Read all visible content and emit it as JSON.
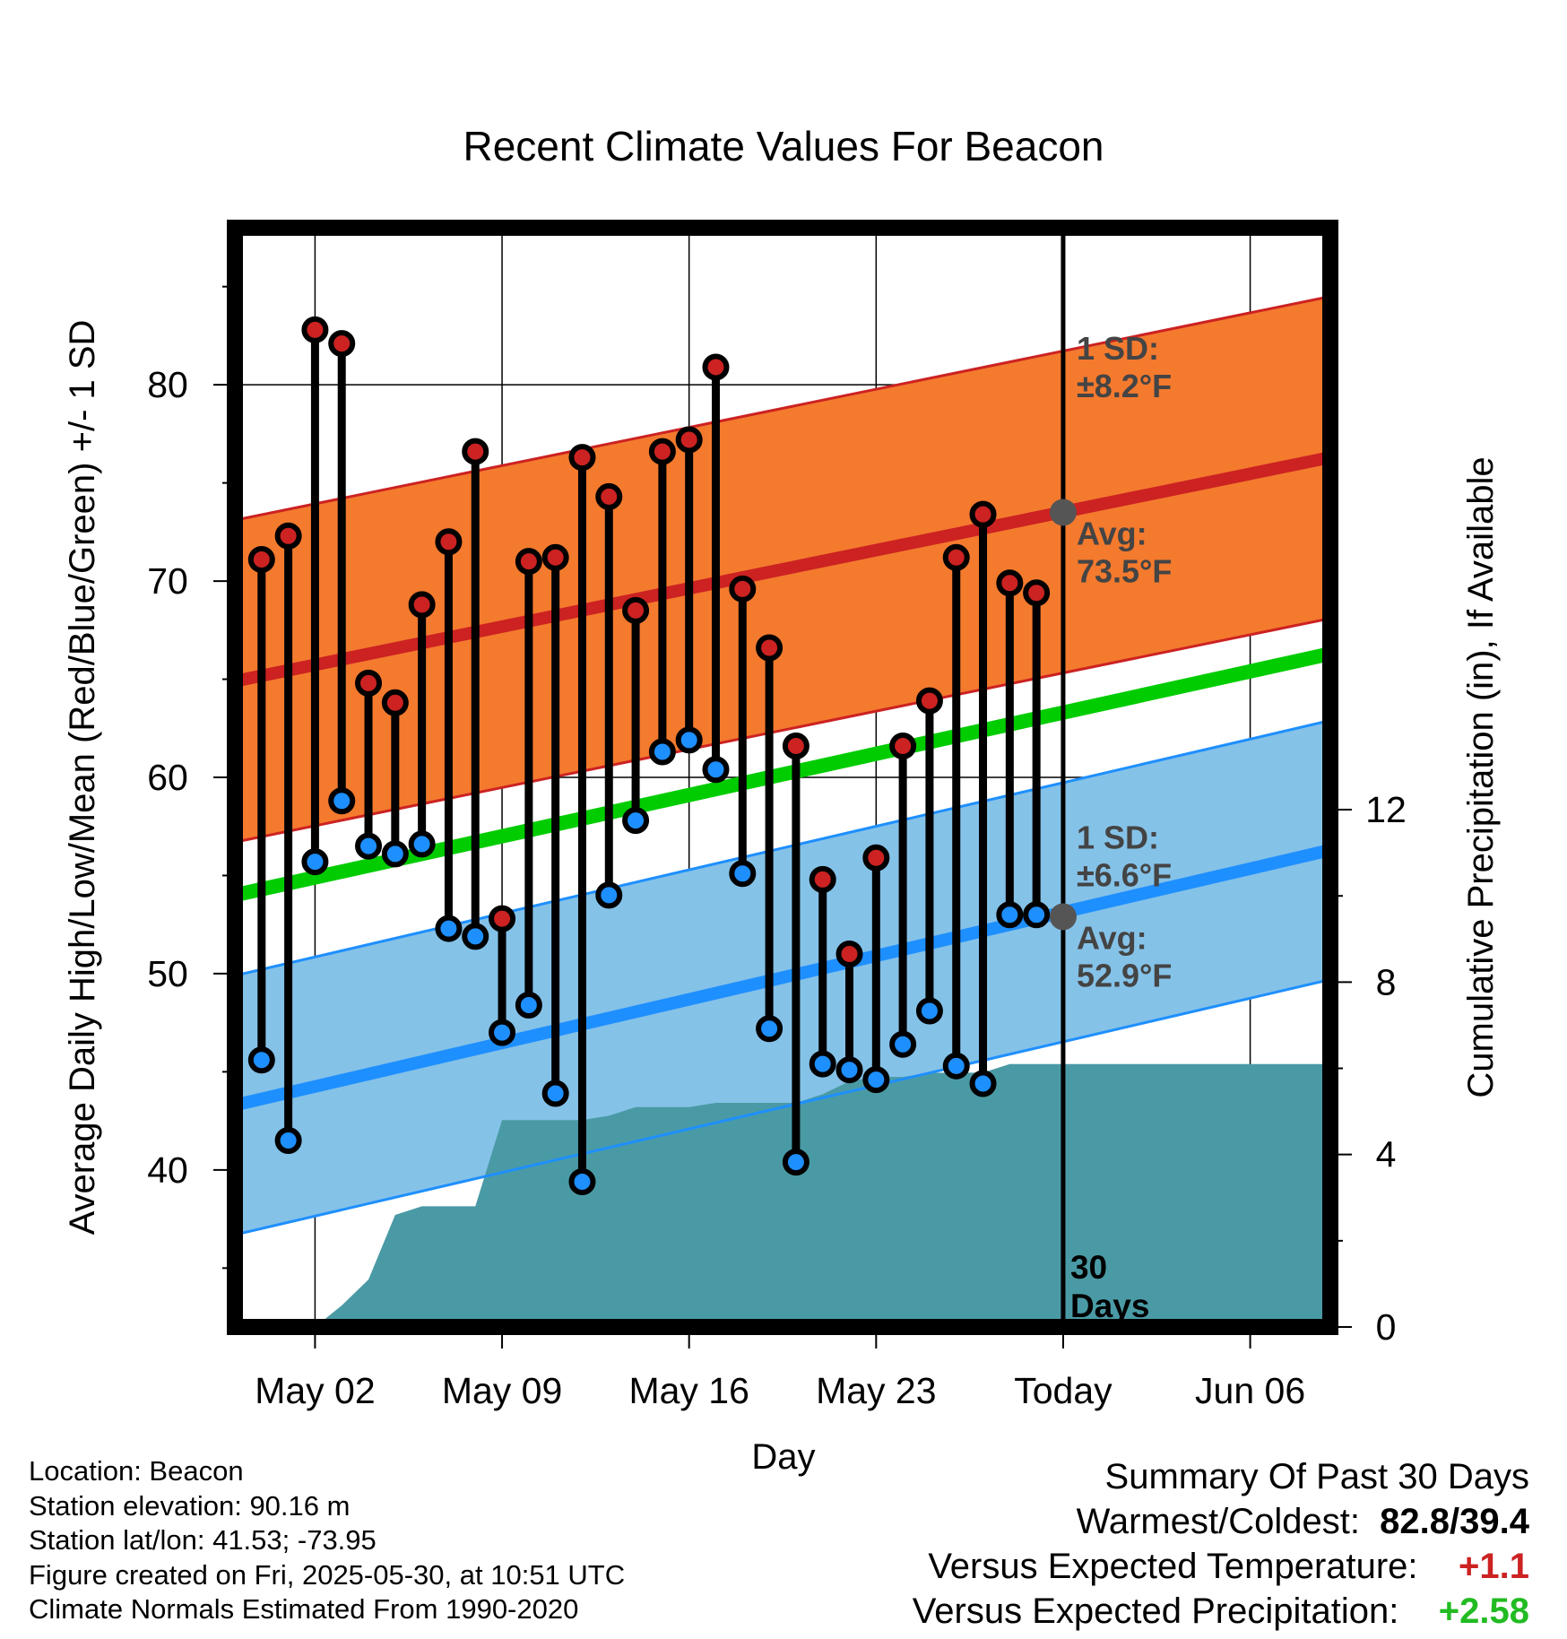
{
  "chart_data": {
    "type": "line",
    "title": "Recent Climate Values For Beacon",
    "xlabel": "Day",
    "ylabel_left": "Average Daily High/Low/Mean (Red/Blue/Green) +/- 1 SD",
    "ylabel_right": "Cumulative Precipitation (in), If Available",
    "x_range": [
      "2025-04-29",
      "2025-06-09"
    ],
    "y_range_left": [
      32,
      88
    ],
    "y_range_right": [
      0,
      25.5
    ],
    "left_ticks": [
      40,
      50,
      60,
      70,
      80
    ],
    "right_ticks": [
      0,
      4,
      8,
      12
    ],
    "x_tick_labels": [
      {
        "date": "2025-05-02",
        "label": "May 02"
      },
      {
        "date": "2025-05-09",
        "label": "May 09"
      },
      {
        "date": "2025-05-16",
        "label": "May 16"
      },
      {
        "date": "2025-05-23",
        "label": "May 23"
      },
      {
        "date": "2025-05-30",
        "label": "Today"
      },
      {
        "date": "2025-06-06",
        "label": "Jun 06"
      }
    ],
    "today": "2025-05-30",
    "today_label": [
      "30",
      "Days"
    ],
    "normals": {
      "high_avg": {
        "start": 64.9,
        "end": 76.3
      },
      "high_sd": 8.2,
      "low_avg": {
        "start": 43.3,
        "end": 56.3
      },
      "low_sd": 6.6,
      "mean_avg": {
        "start": 54.0,
        "end": 66.3
      }
    },
    "annotations": {
      "high_sd": [
        "1 SD:",
        "±8.2°F"
      ],
      "high_avg": [
        "Avg:",
        "73.5°F"
      ],
      "low_sd": [
        "1 SD:",
        "±6.6°F"
      ],
      "low_avg": [
        "Avg:",
        "52.9°F"
      ]
    },
    "today_high_avg": 73.5,
    "today_low_avg": 52.9,
    "series": [
      {
        "name": "High",
        "color": "#cc2222",
        "values": [
          {
            "date": "2025-04-30",
            "value": 71.1
          },
          {
            "date": "2025-05-01",
            "value": 72.3
          },
          {
            "date": "2025-05-02",
            "value": 82.8
          },
          {
            "date": "2025-05-03",
            "value": 82.1
          },
          {
            "date": "2025-05-04",
            "value": 64.8
          },
          {
            "date": "2025-05-05",
            "value": 63.8
          },
          {
            "date": "2025-05-06",
            "value": 68.8
          },
          {
            "date": "2025-05-07",
            "value": 72.0
          },
          {
            "date": "2025-05-08",
            "value": 76.6
          },
          {
            "date": "2025-05-09",
            "value": 52.8
          },
          {
            "date": "2025-05-10",
            "value": 71.0
          },
          {
            "date": "2025-05-11",
            "value": 71.2
          },
          {
            "date": "2025-05-12",
            "value": 76.3
          },
          {
            "date": "2025-05-13",
            "value": 74.3
          },
          {
            "date": "2025-05-14",
            "value": 68.5
          },
          {
            "date": "2025-05-15",
            "value": 76.6
          },
          {
            "date": "2025-05-16",
            "value": 77.2
          },
          {
            "date": "2025-05-17",
            "value": 80.9
          },
          {
            "date": "2025-05-18",
            "value": 69.6
          },
          {
            "date": "2025-05-19",
            "value": 66.6
          },
          {
            "date": "2025-05-20",
            "value": 61.6
          },
          {
            "date": "2025-05-21",
            "value": 54.8
          },
          {
            "date": "2025-05-22",
            "value": 51.0
          },
          {
            "date": "2025-05-23",
            "value": 55.9
          },
          {
            "date": "2025-05-24",
            "value": 61.6
          },
          {
            "date": "2025-05-25",
            "value": 63.9
          },
          {
            "date": "2025-05-26",
            "value": 71.2
          },
          {
            "date": "2025-05-27",
            "value": 73.4
          },
          {
            "date": "2025-05-28",
            "value": 69.9
          },
          {
            "date": "2025-05-29",
            "value": 69.4
          }
        ]
      },
      {
        "name": "Low",
        "color": "#1e8fff",
        "values": [
          {
            "date": "2025-04-30",
            "value": 45.6
          },
          {
            "date": "2025-05-01",
            "value": 41.5
          },
          {
            "date": "2025-05-02",
            "value": 55.7
          },
          {
            "date": "2025-05-03",
            "value": 58.8
          },
          {
            "date": "2025-05-04",
            "value": 56.5
          },
          {
            "date": "2025-05-05",
            "value": 56.1
          },
          {
            "date": "2025-05-06",
            "value": 56.6
          },
          {
            "date": "2025-05-07",
            "value": 52.3
          },
          {
            "date": "2025-05-08",
            "value": 51.9
          },
          {
            "date": "2025-05-09",
            "value": 47.0
          },
          {
            "date": "2025-05-10",
            "value": 48.4
          },
          {
            "date": "2025-05-11",
            "value": 43.9
          },
          {
            "date": "2025-05-12",
            "value": 39.4
          },
          {
            "date": "2025-05-13",
            "value": 54.0
          },
          {
            "date": "2025-05-14",
            "value": 57.8
          },
          {
            "date": "2025-05-15",
            "value": 61.3
          },
          {
            "date": "2025-05-16",
            "value": 61.9
          },
          {
            "date": "2025-05-17",
            "value": 60.4
          },
          {
            "date": "2025-05-18",
            "value": 55.1
          },
          {
            "date": "2025-05-19",
            "value": 47.2
          },
          {
            "date": "2025-05-20",
            "value": 40.4
          },
          {
            "date": "2025-05-21",
            "value": 45.4
          },
          {
            "date": "2025-05-22",
            "value": 45.1
          },
          {
            "date": "2025-05-23",
            "value": 44.6
          },
          {
            "date": "2025-05-24",
            "value": 46.4
          },
          {
            "date": "2025-05-25",
            "value": 48.1
          },
          {
            "date": "2025-05-26",
            "value": 45.3
          },
          {
            "date": "2025-05-27",
            "value": 44.4
          },
          {
            "date": "2025-05-28",
            "value": 53.0
          },
          {
            "date": "2025-05-29",
            "value": 53.0
          }
        ]
      },
      {
        "name": "Cumulative Precipitation",
        "color": "#4a9aa5",
        "values": [
          {
            "date": "2025-05-02",
            "value": 0.0
          },
          {
            "date": "2025-05-03",
            "value": 0.5
          },
          {
            "date": "2025-05-04",
            "value": 1.1
          },
          {
            "date": "2025-05-05",
            "value": 2.6
          },
          {
            "date": "2025-05-06",
            "value": 2.8
          },
          {
            "date": "2025-05-07",
            "value": 2.8
          },
          {
            "date": "2025-05-08",
            "value": 2.8
          },
          {
            "date": "2025-05-09",
            "value": 4.8
          },
          {
            "date": "2025-05-10",
            "value": 4.8
          },
          {
            "date": "2025-05-11",
            "value": 4.8
          },
          {
            "date": "2025-05-12",
            "value": 4.8
          },
          {
            "date": "2025-05-13",
            "value": 4.9
          },
          {
            "date": "2025-05-14",
            "value": 5.1
          },
          {
            "date": "2025-05-15",
            "value": 5.1
          },
          {
            "date": "2025-05-16",
            "value": 5.1
          },
          {
            "date": "2025-05-17",
            "value": 5.2
          },
          {
            "date": "2025-05-18",
            "value": 5.2
          },
          {
            "date": "2025-05-19",
            "value": 5.2
          },
          {
            "date": "2025-05-20",
            "value": 5.2
          },
          {
            "date": "2025-05-21",
            "value": 5.4
          },
          {
            "date": "2025-05-22",
            "value": 5.7
          },
          {
            "date": "2025-05-23",
            "value": 5.8
          },
          {
            "date": "2025-05-24",
            "value": 5.8
          },
          {
            "date": "2025-05-25",
            "value": 5.9
          },
          {
            "date": "2025-05-26",
            "value": 5.9
          },
          {
            "date": "2025-05-27",
            "value": 5.9
          },
          {
            "date": "2025-05-28",
            "value": 6.1
          },
          {
            "date": "2025-05-29",
            "value": 6.1
          },
          {
            "date": "2025-05-30",
            "value": 6.1
          },
          {
            "date": "2025-06-09",
            "value": 6.1
          }
        ]
      }
    ]
  },
  "footer": {
    "location": "Location: Beacon",
    "elevation": "Station elevation: 90.16 m",
    "latlon": "Station lat/lon: 41.53; -73.95",
    "created": "Figure created on Fri, 2025-05-30, at 10:51 UTC",
    "normals": "Climate Normals Estimated From 1990-2020"
  },
  "summary": {
    "heading": "Summary Of Past 30 Days",
    "warmest_label": "Warmest/Coldest:",
    "warmest_value": "82.8/39.4",
    "temp_label": "Versus Expected Temperature:",
    "temp_value": "+1.1",
    "temp_color": "#cc2222",
    "precip_label": "Versus Expected Precipitation:",
    "precip_value": "+2.58",
    "precip_color": "#22bb22"
  },
  "colors": {
    "high_band": "#f47a2e",
    "high_line": "#cc2222",
    "low_band": "#85c2e8",
    "low_line": "#1e8fff",
    "mean_line": "#00cc00",
    "precip": "#4a9aa5",
    "marker_gray": "#555555"
  }
}
